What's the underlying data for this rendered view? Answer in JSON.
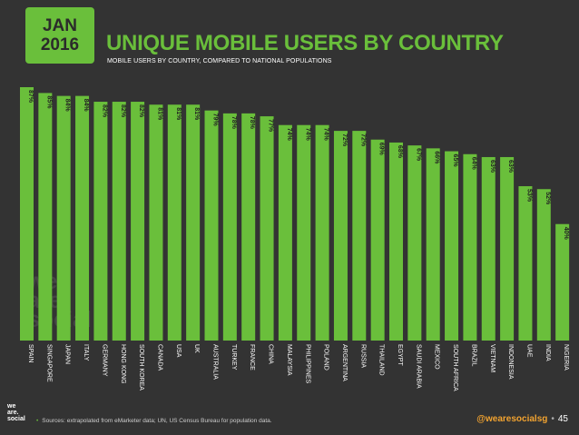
{
  "date": {
    "month": "JAN",
    "year": "2016"
  },
  "title": "UNIQUE MOBILE USERS BY COUNTRY",
  "subtitle": "MOBILE USERS BY COUNTRY, COMPARED TO NATIONAL POPULATIONS",
  "watermark": [
    "we",
    "are",
    "social"
  ],
  "footer": {
    "logo": [
      "we",
      "are.",
      "social"
    ],
    "source": "Sources: extrapolated from eMarketer data; UN, US Census Bureau for population data.",
    "handle": "@wearesocialsg",
    "separator": "•",
    "page": "45"
  },
  "colors": {
    "accent": "#6abf3b",
    "background": "#333333",
    "bar": "#6abf3b"
  },
  "chart_data": {
    "type": "bar",
    "title": "UNIQUE MOBILE USERS BY COUNTRY",
    "xlabel": "",
    "ylabel": "",
    "ylim": [
      0,
      100
    ],
    "grid": false,
    "categories": [
      "SPAIN",
      "SINGAPORE",
      "JAPAN",
      "ITALY",
      "GERMANY",
      "HONG KONG",
      "SOUTH KOREA",
      "CANADA",
      "USA",
      "UK",
      "AUSTRALIA",
      "TURKEY",
      "FRANCE",
      "CHINA",
      "MALAYSIA",
      "PHILIPPINES",
      "POLAND",
      "ARGENTINA",
      "RUSSIA",
      "THAILAND",
      "EGYPT",
      "SAUDI ARABIA",
      "MEXICO",
      "SOUTH AFRICA",
      "BRAZIL",
      "VIETNAM",
      "INDONESIA",
      "UAE",
      "INDIA",
      "NIGERIA"
    ],
    "values": [
      87,
      85,
      84,
      84,
      82,
      82,
      82,
      81,
      81,
      81,
      79,
      78,
      78,
      77,
      74,
      74,
      74,
      72,
      72,
      69,
      68,
      67,
      66,
      65,
      64,
      63,
      63,
      53,
      52,
      40
    ],
    "labels": [
      "87%",
      "85%",
      "84%",
      "84%",
      "82%",
      "82%",
      "82%",
      "81%",
      "81%",
      "81%",
      "79%",
      "78%",
      "78%",
      "77%",
      "74%",
      "74%",
      "74%",
      "72%",
      "72%",
      "69%",
      "68%",
      "67%",
      "66%",
      "65%",
      "64%",
      "63%",
      "63%",
      "53%",
      "52%",
      "40%"
    ]
  }
}
